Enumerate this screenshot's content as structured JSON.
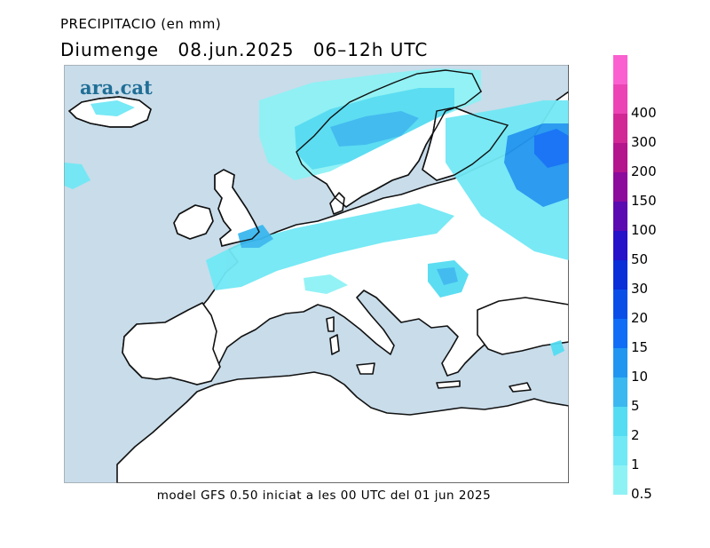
{
  "header": {
    "variable": "PRECIPITACIO (en mm)",
    "day": "Diumenge",
    "date": "08.jun.2025",
    "interval": "06–12h UTC"
  },
  "brand": "ara.cat",
  "footer": "model GFS 0.50 iniciat a les 00 UTC del 01 jun 2025",
  "colors": {
    "sea": "#c8dcea",
    "land": "#ffffff",
    "coast": "#111111"
  },
  "legend": [
    {
      "label": "0.5",
      "color": "#8ef2f5"
    },
    {
      "label": "1",
      "color": "#71e8f5"
    },
    {
      "label": "2",
      "color": "#54dcf2"
    },
    {
      "label": "5",
      "color": "#3ab8ef"
    },
    {
      "label": "10",
      "color": "#2196f0"
    },
    {
      "label": "15",
      "color": "#0f6ef5"
    },
    {
      "label": "20",
      "color": "#0a4ee8"
    },
    {
      "label": "30",
      "color": "#0a2ed8"
    },
    {
      "label": "50",
      "color": "#2612c8"
    },
    {
      "label": "100",
      "color": "#5a0ab0"
    },
    {
      "label": "150",
      "color": "#8c0a9c"
    },
    {
      "label": "200",
      "color": "#b4148c"
    },
    {
      "label": "300",
      "color": "#d22896"
    },
    {
      "label": "400",
      "color": "#ec44b4"
    },
    {
      "label": "",
      "color": "#fa60d0"
    }
  ]
}
